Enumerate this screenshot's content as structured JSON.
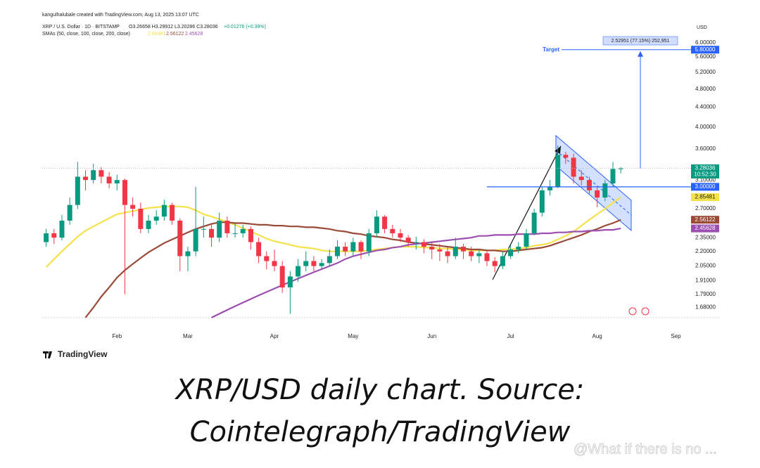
{
  "header": {
    "created": "kangulhalubale created with TradingView.com, Aug 13, 2025 13:07 UTC",
    "symbol": "XRP / U.S. Dollar · 1D · BITSTAMP",
    "ohlc": "O3.26658 H3.29912 L3.20286 C3.28036",
    "change": "+0.01276 (+0.39%)",
    "sma_title": "SMAs (50, close, 100, close, 200, close)",
    "currency": "USD"
  },
  "chart_data": {
    "type": "candlestick",
    "categories": [
      null,
      null,
      null,
      null,
      null,
      null,
      null,
      null,
      null,
      "Feb",
      null,
      null,
      null,
      null,
      null,
      null,
      null,
      null,
      "Mar",
      null,
      null,
      null,
      null,
      null,
      null,
      null,
      null,
      null,
      null,
      "Apr",
      null,
      null,
      null,
      null,
      null,
      null,
      null,
      null,
      null,
      "May",
      null,
      null,
      null,
      null,
      null,
      null,
      null,
      null,
      null,
      "Jun",
      null,
      null,
      null,
      null,
      null,
      null,
      null,
      null,
      null,
      "Jul",
      null,
      null,
      null,
      null,
      null,
      null,
      null,
      null,
      null,
      null,
      "Aug",
      null,
      null,
      null,
      null,
      null,
      null,
      null,
      null,
      null,
      "Sep",
      null,
      null,
      null,
      null,
      null
    ],
    "open": [
      2.3,
      2.4,
      2.35,
      2.55,
      2.75,
      3.15,
      3.1,
      3.25,
      3.15,
      3.05,
      3.1,
      2.75,
      2.7,
      2.45,
      2.55,
      2.6,
      2.75,
      2.55,
      2.15,
      2.2,
      2.45,
      2.45,
      2.35,
      2.55,
      2.4,
      2.4,
      2.45,
      2.3,
      2.15,
      2.1,
      2.05,
      1.85,
      1.95,
      2.05,
      2.1,
      2.05,
      2.08,
      2.15,
      2.25,
      2.2,
      2.3,
      2.2,
      2.4,
      2.6,
      2.45,
      2.4,
      2.35,
      2.3,
      2.3,
      2.25,
      2.22,
      2.2,
      2.15,
      2.25,
      2.2,
      2.15,
      2.18,
      2.1,
      2.05,
      2.15,
      2.22,
      2.25,
      2.4,
      2.65,
      2.95,
      3.0,
      3.5,
      3.45,
      3.15,
      3.1,
      2.95,
      2.85,
      3.05,
      3.26658,
      null,
      null,
      null,
      null,
      null,
      null,
      null,
      null,
      null,
      null,
      null,
      null
    ],
    "high": [
      2.45,
      2.45,
      2.62,
      2.85,
      3.38,
      3.25,
      3.35,
      3.3,
      3.22,
      3.18,
      3.12,
      2.85,
      2.78,
      2.62,
      2.68,
      2.82,
      2.78,
      2.58,
      2.25,
      3.0,
      2.6,
      2.5,
      2.65,
      2.6,
      2.52,
      2.5,
      2.48,
      2.35,
      2.2,
      2.22,
      2.1,
      2.0,
      2.12,
      2.2,
      2.15,
      2.12,
      2.22,
      2.32,
      2.3,
      2.35,
      2.32,
      2.45,
      2.68,
      2.62,
      2.5,
      2.45,
      2.38,
      2.36,
      2.33,
      2.3,
      2.28,
      2.24,
      2.35,
      2.28,
      2.25,
      2.22,
      2.2,
      2.14,
      2.2,
      2.26,
      2.3,
      2.45,
      2.7,
      3.0,
      3.1,
      3.66,
      3.55,
      3.52,
      3.25,
      3.15,
      3.0,
      3.1,
      3.38,
      3.29912,
      null,
      null,
      null,
      null,
      null,
      null,
      null,
      null,
      null,
      null,
      null,
      null
    ],
    "low": [
      2.25,
      2.28,
      2.32,
      2.5,
      2.7,
      2.95,
      3.05,
      3.05,
      2.98,
      2.95,
      1.79,
      2.6,
      2.4,
      2.4,
      2.5,
      2.55,
      2.5,
      2.0,
      2.0,
      2.15,
      2.35,
      2.25,
      2.3,
      2.35,
      2.35,
      2.35,
      2.22,
      2.08,
      2.02,
      2.0,
      1.8,
      1.63,
      1.9,
      2.0,
      2.0,
      2.02,
      2.05,
      2.12,
      2.15,
      2.15,
      2.12,
      2.15,
      2.35,
      2.4,
      2.35,
      2.3,
      2.25,
      2.22,
      2.18,
      2.12,
      2.1,
      2.08,
      2.12,
      2.12,
      2.1,
      2.08,
      2.05,
      1.99,
      2.02,
      2.12,
      2.18,
      2.22,
      2.38,
      2.6,
      2.88,
      2.98,
      3.35,
      3.05,
      3.02,
      2.9,
      2.72,
      2.8,
      3.0,
      3.20286,
      null,
      null,
      null,
      null,
      null,
      null,
      null,
      null,
      null,
      null,
      null,
      null
    ],
    "close": [
      2.4,
      2.35,
      2.55,
      2.75,
      3.15,
      3.1,
      3.25,
      3.15,
      3.05,
      3.1,
      2.75,
      2.7,
      2.45,
      2.55,
      2.6,
      2.75,
      2.55,
      2.15,
      2.2,
      2.45,
      2.45,
      2.35,
      2.55,
      2.4,
      2.4,
      2.45,
      2.3,
      2.15,
      2.1,
      2.05,
      1.85,
      1.95,
      2.05,
      2.1,
      2.05,
      2.08,
      2.15,
      2.25,
      2.2,
      2.3,
      2.2,
      2.4,
      2.6,
      2.45,
      2.4,
      2.35,
      2.3,
      2.3,
      2.25,
      2.22,
      2.2,
      2.15,
      2.25,
      2.2,
      2.15,
      2.18,
      2.1,
      2.05,
      2.15,
      2.22,
      2.25,
      2.4,
      2.65,
      2.95,
      3.0,
      3.5,
      3.45,
      3.15,
      3.1,
      2.95,
      2.85,
      3.05,
      3.27,
      3.28036,
      null,
      null,
      null,
      null,
      null,
      null,
      null,
      null,
      null,
      null,
      null,
      null
    ],
    "up_color": "#089981",
    "down_color": "#f23645",
    "lines": [
      {
        "color": "#f5e24a",
        "values": [
          2.04,
          2.12,
          2.2,
          2.28,
          2.36,
          2.43,
          2.48,
          2.53,
          2.58,
          2.63,
          2.65,
          2.67,
          2.69,
          2.71,
          2.72,
          2.73,
          2.73,
          2.73,
          2.72,
          2.68,
          2.63,
          2.6,
          2.57,
          2.53,
          2.5,
          2.46,
          2.42,
          2.38,
          2.34,
          2.31,
          2.29,
          2.27,
          2.25,
          2.24,
          2.23,
          2.21,
          2.2,
          2.2,
          2.2,
          2.2,
          2.2,
          2.21,
          2.22,
          2.23,
          2.24,
          2.25,
          2.25,
          2.25,
          2.24,
          2.24,
          2.23,
          2.23,
          2.22,
          2.22,
          2.21,
          2.21,
          2.21,
          2.21,
          2.22,
          2.22,
          2.23,
          2.24,
          2.26,
          2.27,
          2.29,
          2.33,
          2.37,
          2.42,
          2.49,
          2.56,
          2.63,
          2.7,
          2.78,
          2.85481,
          null,
          null,
          null,
          null,
          null,
          null,
          null,
          null,
          null,
          null,
          null,
          null
        ]
      },
      {
        "color": "#9a4a36",
        "values": [
          null,
          null,
          null,
          null,
          null,
          1.6,
          1.68,
          1.77,
          1.85,
          1.94,
          2.01,
          2.07,
          2.13,
          2.19,
          2.24,
          2.29,
          2.33,
          2.37,
          2.41,
          2.45,
          2.48,
          2.51,
          2.53,
          2.53,
          2.52,
          2.52,
          2.51,
          2.5,
          2.5,
          2.49,
          2.49,
          2.48,
          2.48,
          2.47,
          2.47,
          2.46,
          2.45,
          2.43,
          2.42,
          2.4,
          2.39,
          2.37,
          2.36,
          2.35,
          2.33,
          2.32,
          2.3,
          2.29,
          2.28,
          2.27,
          2.26,
          2.25,
          2.24,
          2.23,
          2.22,
          2.22,
          2.21,
          2.21,
          2.2,
          2.2,
          2.21,
          2.22,
          2.23,
          2.24,
          2.26,
          2.29,
          2.32,
          2.35,
          2.38,
          2.42,
          2.45,
          2.49,
          2.52,
          2.56122,
          null,
          null,
          null,
          null,
          null,
          null,
          null,
          null,
          null,
          null,
          null,
          null
        ]
      },
      {
        "color": "#9c4fb0",
        "values": [
          null,
          null,
          null,
          null,
          null,
          null,
          null,
          null,
          null,
          null,
          null,
          null,
          null,
          null,
          null,
          null,
          null,
          null,
          null,
          null,
          null,
          1.6,
          1.63,
          1.66,
          1.69,
          1.72,
          1.75,
          1.78,
          1.81,
          1.84,
          1.87,
          1.9,
          1.93,
          1.96,
          1.99,
          2.02,
          2.05,
          2.08,
          2.12,
          2.15,
          2.17,
          2.19,
          2.21,
          2.22,
          2.24,
          2.25,
          2.27,
          2.28,
          2.29,
          2.3,
          2.31,
          2.32,
          2.33,
          2.34,
          2.35,
          2.37,
          2.37,
          2.38,
          2.38,
          2.38,
          2.39,
          2.39,
          2.39,
          2.4,
          2.4,
          2.41,
          2.41,
          2.42,
          2.42,
          2.43,
          2.43,
          2.44,
          2.44,
          2.45628,
          null,
          null,
          null,
          null,
          null,
          null,
          null,
          null,
          null,
          null,
          null,
          null
        ]
      }
    ],
    "ylim": [
      1.6,
      6.7
    ],
    "log_scale": true,
    "yticks": [
      {
        "value": 6.0,
        "label": "6.00000"
      },
      {
        "value": 5.6,
        "label": "5.60000"
      },
      {
        "value": 5.2,
        "label": "5.20000"
      },
      {
        "value": 4.8,
        "label": "4.80000"
      },
      {
        "value": 4.4,
        "label": "4.40000"
      },
      {
        "value": 4.0,
        "label": "4.00000"
      },
      {
        "value": 3.6,
        "label": "3.60000"
      },
      {
        "value": 3.1,
        "label": "3.10000"
      },
      {
        "value": 2.7,
        "label": "2.70000"
      },
      {
        "value": 2.35,
        "label": "2.35000"
      },
      {
        "value": 2.2,
        "label": "2.20000"
      },
      {
        "value": 2.05,
        "label": "2.05000"
      },
      {
        "value": 1.91,
        "label": "1.91000"
      },
      {
        "value": 1.79,
        "label": "1.79000"
      },
      {
        "value": 1.68,
        "label": "1.68000"
      }
    ],
    "levels": [
      {
        "value": 3.0,
        "label": "3.00000",
        "color": "#2962ff"
      },
      {
        "value": 5.8,
        "label": "5.80000",
        "color": "#2962ff",
        "name": "Target"
      }
    ],
    "countdown": "10:52:30",
    "measure": "2.52951 (77.15%) 252,951"
  },
  "brand": "TradingView",
  "caption": [
    "XRP/USD daily chart. Source:",
    "Cointelegraph/TradingView"
  ],
  "watermark": "@What if there is no ..."
}
